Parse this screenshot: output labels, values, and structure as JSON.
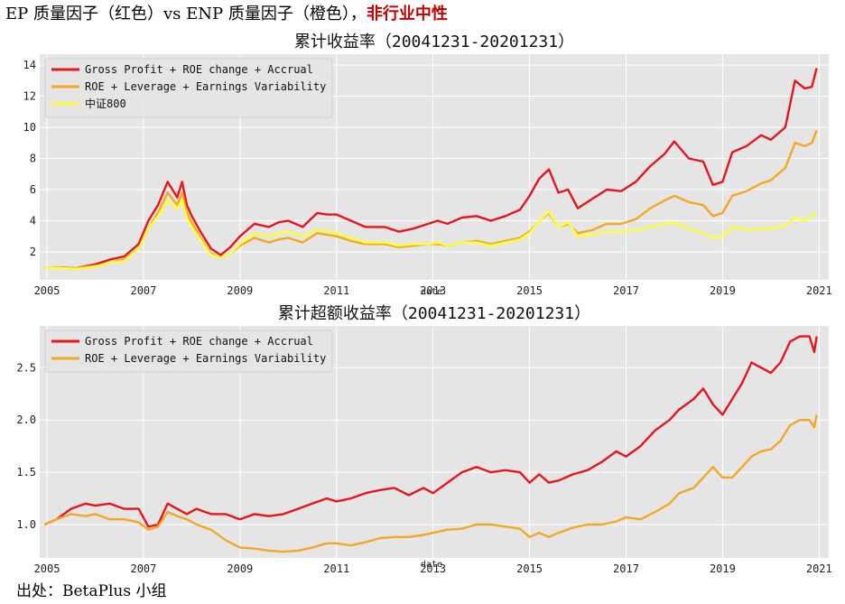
{
  "header": {
    "prefix": "EP 质量因子（红色）vs ENP 质量因子（橙色），",
    "highlight": "非行业中性"
  },
  "footer": {
    "source": "出处：BetaPlus 小组"
  },
  "colors": {
    "red": "#e8141c",
    "orange": "#f5a623",
    "yellow": "#ffff33",
    "panel": "#e5e5e5",
    "grid": "#ffffff"
  },
  "chart_data": [
    {
      "type": "line",
      "title": "累计收益率（20041231-20201231）",
      "xlabel": "date",
      "ylabel": "",
      "xlim": [
        2004.85,
        2021.2
      ],
      "ylim": [
        0.2,
        14.7
      ],
      "grid": true,
      "legend_position": "top-left",
      "x_ticks": [
        2005,
        2007,
        2009,
        2011,
        2013,
        2015,
        2017,
        2019,
        2021
      ],
      "x_tick_labels": [
        "2005",
        "2007",
        "2009",
        "2011",
        "2013",
        "2015",
        "2017",
        "2019",
        "2021"
      ],
      "y_ticks": [
        2,
        4,
        6,
        8,
        10,
        12,
        14
      ],
      "y_tick_labels": [
        "2",
        "4",
        "6",
        "8",
        "10",
        "12",
        "14"
      ],
      "series": [
        {
          "name": "Gross Profit + ROE change + Accrual",
          "color": "#e8141c",
          "x": [
            2004.95,
            2005.3,
            2005.6,
            2006.0,
            2006.3,
            2006.6,
            2006.9,
            2007.1,
            2007.3,
            2007.5,
            2007.7,
            2007.8,
            2007.9,
            2008.0,
            2008.2,
            2008.4,
            2008.6,
            2008.8,
            2009.0,
            2009.3,
            2009.6,
            2009.8,
            2010.0,
            2010.3,
            2010.6,
            2010.8,
            2011.0,
            2011.3,
            2011.6,
            2012.0,
            2012.3,
            2012.6,
            2012.9,
            2013.1,
            2013.3,
            2013.6,
            2013.9,
            2014.2,
            2014.5,
            2014.8,
            2015.0,
            2015.2,
            2015.4,
            2015.6,
            2015.8,
            2016.0,
            2016.3,
            2016.6,
            2016.9,
            2017.2,
            2017.5,
            2017.8,
            2018.0,
            2018.3,
            2018.6,
            2018.8,
            2019.0,
            2019.2,
            2019.5,
            2019.8,
            2020.0,
            2020.3,
            2020.5,
            2020.7,
            2020.85,
            2020.95
          ],
          "y": [
            1.0,
            1.0,
            0.95,
            1.2,
            1.5,
            1.7,
            2.5,
            4.0,
            5.0,
            6.5,
            5.5,
            6.5,
            5.0,
            4.3,
            3.2,
            2.2,
            1.8,
            2.3,
            3.0,
            3.8,
            3.6,
            3.9,
            4.0,
            3.6,
            4.5,
            4.4,
            4.4,
            4.0,
            3.6,
            3.6,
            3.3,
            3.5,
            3.8,
            4.0,
            3.8,
            4.2,
            4.3,
            4.0,
            4.3,
            4.7,
            5.6,
            6.7,
            7.3,
            5.8,
            6.0,
            4.8,
            5.4,
            6.0,
            5.9,
            6.5,
            7.5,
            8.3,
            9.1,
            8.0,
            7.8,
            6.3,
            6.5,
            8.4,
            8.8,
            9.5,
            9.2,
            10.0,
            13.0,
            12.5,
            12.6,
            13.8
          ]
        },
        {
          "name": "ROE + Leverage + Earnings Variability",
          "color": "#f5a623",
          "x": [
            2004.95,
            2005.3,
            2005.6,
            2006.0,
            2006.3,
            2006.6,
            2006.9,
            2007.1,
            2007.3,
            2007.5,
            2007.7,
            2007.8,
            2007.9,
            2008.0,
            2008.2,
            2008.4,
            2008.6,
            2008.8,
            2009.0,
            2009.3,
            2009.6,
            2009.8,
            2010.0,
            2010.3,
            2010.6,
            2010.8,
            2011.0,
            2011.3,
            2011.6,
            2012.0,
            2012.3,
            2012.6,
            2012.9,
            2013.1,
            2013.3,
            2013.6,
            2013.9,
            2014.2,
            2014.5,
            2014.8,
            2015.0,
            2015.2,
            2015.4,
            2015.6,
            2015.8,
            2016.0,
            2016.3,
            2016.6,
            2016.9,
            2017.2,
            2017.5,
            2017.8,
            2018.0,
            2018.3,
            2018.6,
            2018.8,
            2019.0,
            2019.2,
            2019.5,
            2019.8,
            2020.0,
            2020.3,
            2020.5,
            2020.7,
            2020.85,
            2020.95
          ],
          "y": [
            1.0,
            1.0,
            0.95,
            1.1,
            1.3,
            1.5,
            2.2,
            3.5,
            4.5,
            5.8,
            5.0,
            5.8,
            4.5,
            3.9,
            2.8,
            1.9,
            1.6,
            1.9,
            2.4,
            2.9,
            2.6,
            2.8,
            2.9,
            2.6,
            3.2,
            3.1,
            3.0,
            2.7,
            2.5,
            2.5,
            2.3,
            2.4,
            2.5,
            2.5,
            2.4,
            2.6,
            2.7,
            2.5,
            2.7,
            2.9,
            3.3,
            4.0,
            4.5,
            3.6,
            3.8,
            3.2,
            3.4,
            3.8,
            3.8,
            4.1,
            4.8,
            5.3,
            5.6,
            5.2,
            5.0,
            4.3,
            4.5,
            5.6,
            5.9,
            6.4,
            6.6,
            7.4,
            9.0,
            8.8,
            9.0,
            9.8
          ]
        },
        {
          "name": "中证800",
          "color": "#ffff33",
          "x": [
            2004.95,
            2005.3,
            2005.6,
            2006.0,
            2006.3,
            2006.6,
            2006.9,
            2007.1,
            2007.3,
            2007.5,
            2007.7,
            2007.8,
            2007.9,
            2008.0,
            2008.2,
            2008.4,
            2008.6,
            2008.8,
            2009.0,
            2009.3,
            2009.6,
            2009.8,
            2010.0,
            2010.3,
            2010.6,
            2010.8,
            2011.0,
            2011.3,
            2011.6,
            2012.0,
            2012.3,
            2012.6,
            2012.9,
            2013.1,
            2013.3,
            2013.6,
            2013.9,
            2014.2,
            2014.5,
            2014.8,
            2015.0,
            2015.2,
            2015.4,
            2015.6,
            2015.8,
            2016.0,
            2016.3,
            2016.6,
            2016.9,
            2017.2,
            2017.5,
            2017.8,
            2018.0,
            2018.3,
            2018.6,
            2018.8,
            2019.0,
            2019.2,
            2019.5,
            2019.8,
            2020.0,
            2020.3,
            2020.5,
            2020.7,
            2020.85,
            2020.95
          ],
          "y": [
            1.0,
            0.95,
            0.9,
            1.05,
            1.3,
            1.4,
            2.2,
            3.5,
            4.3,
            5.3,
            4.8,
            5.3,
            4.2,
            3.6,
            2.7,
            1.8,
            1.6,
            1.9,
            2.5,
            3.2,
            3.0,
            3.2,
            3.3,
            3.0,
            3.4,
            3.3,
            3.2,
            2.9,
            2.6,
            2.6,
            2.4,
            2.5,
            2.5,
            2.6,
            2.4,
            2.6,
            2.6,
            2.4,
            2.6,
            2.8,
            3.2,
            4.0,
            4.6,
            3.6,
            3.9,
            3.0,
            3.1,
            3.3,
            3.3,
            3.4,
            3.6,
            3.8,
            3.9,
            3.5,
            3.2,
            2.9,
            3.0,
            3.6,
            3.4,
            3.5,
            3.5,
            3.7,
            4.2,
            4.0,
            4.3,
            4.5
          ]
        }
      ]
    },
    {
      "type": "line",
      "title": "累计超额收益率（20041231-20201231）",
      "xlabel": "date",
      "ylabel": "",
      "xlim": [
        2004.85,
        2021.2
      ],
      "ylim": [
        0.68,
        2.9
      ],
      "grid": true,
      "legend_position": "top-left",
      "x_ticks": [
        2005,
        2007,
        2009,
        2011,
        2013,
        2015,
        2017,
        2019,
        2021
      ],
      "x_tick_labels": [
        "2005",
        "2007",
        "2009",
        "2011",
        "2013",
        "2015",
        "2017",
        "2019",
        "2021"
      ],
      "y_ticks": [
        1.0,
        1.5,
        2.0,
        2.5
      ],
      "y_tick_labels": [
        "1.0",
        "1.5",
        "2.0",
        "2.5"
      ],
      "series": [
        {
          "name": "Gross Profit + ROE change + Accrual",
          "color": "#e8141c",
          "x": [
            2004.95,
            2005.2,
            2005.5,
            2005.8,
            2006.0,
            2006.3,
            2006.6,
            2006.9,
            2007.1,
            2007.3,
            2007.5,
            2007.7,
            2007.9,
            2008.1,
            2008.4,
            2008.7,
            2009.0,
            2009.3,
            2009.6,
            2009.9,
            2010.2,
            2010.5,
            2010.8,
            2011.0,
            2011.3,
            2011.6,
            2011.9,
            2012.2,
            2012.5,
            2012.8,
            2013.0,
            2013.3,
            2013.6,
            2013.9,
            2014.2,
            2014.5,
            2014.8,
            2015.0,
            2015.2,
            2015.4,
            2015.6,
            2015.9,
            2016.2,
            2016.5,
            2016.8,
            2017.0,
            2017.3,
            2017.6,
            2017.9,
            2018.1,
            2018.4,
            2018.6,
            2018.8,
            2019.0,
            2019.2,
            2019.4,
            2019.6,
            2019.8,
            2020.0,
            2020.2,
            2020.4,
            2020.6,
            2020.8,
            2020.9,
            2020.95
          ],
          "y": [
            1.0,
            1.05,
            1.15,
            1.2,
            1.18,
            1.2,
            1.15,
            1.15,
            0.98,
            1.0,
            1.2,
            1.15,
            1.1,
            1.15,
            1.1,
            1.1,
            1.05,
            1.1,
            1.08,
            1.1,
            1.15,
            1.2,
            1.25,
            1.22,
            1.25,
            1.3,
            1.33,
            1.35,
            1.28,
            1.35,
            1.3,
            1.4,
            1.5,
            1.55,
            1.5,
            1.52,
            1.5,
            1.4,
            1.48,
            1.4,
            1.42,
            1.48,
            1.52,
            1.6,
            1.7,
            1.65,
            1.75,
            1.9,
            2.0,
            2.1,
            2.2,
            2.3,
            2.15,
            2.05,
            2.2,
            2.35,
            2.55,
            2.5,
            2.45,
            2.55,
            2.75,
            2.8,
            2.8,
            2.65,
            2.8
          ]
        },
        {
          "name": "ROE + Leverage + Earnings Variability",
          "color": "#f5a623",
          "x": [
            2004.95,
            2005.2,
            2005.5,
            2005.8,
            2006.0,
            2006.3,
            2006.6,
            2006.9,
            2007.1,
            2007.3,
            2007.5,
            2007.7,
            2007.9,
            2008.1,
            2008.4,
            2008.7,
            2009.0,
            2009.3,
            2009.6,
            2009.9,
            2010.2,
            2010.5,
            2010.8,
            2011.0,
            2011.3,
            2011.6,
            2011.9,
            2012.2,
            2012.5,
            2012.8,
            2013.0,
            2013.3,
            2013.6,
            2013.9,
            2014.2,
            2014.5,
            2014.8,
            2015.0,
            2015.2,
            2015.4,
            2015.6,
            2015.9,
            2016.2,
            2016.5,
            2016.8,
            2017.0,
            2017.3,
            2017.6,
            2017.9,
            2018.1,
            2018.4,
            2018.6,
            2018.8,
            2019.0,
            2019.2,
            2019.4,
            2019.6,
            2019.8,
            2020.0,
            2020.2,
            2020.4,
            2020.6,
            2020.8,
            2020.9,
            2020.95
          ],
          "y": [
            1.0,
            1.05,
            1.1,
            1.08,
            1.1,
            1.05,
            1.05,
            1.02,
            0.95,
            0.98,
            1.12,
            1.08,
            1.05,
            1.0,
            0.95,
            0.85,
            0.78,
            0.77,
            0.75,
            0.74,
            0.75,
            0.78,
            0.82,
            0.82,
            0.8,
            0.83,
            0.87,
            0.88,
            0.88,
            0.9,
            0.92,
            0.95,
            0.96,
            1.0,
            1.0,
            0.98,
            0.96,
            0.88,
            0.92,
            0.88,
            0.92,
            0.97,
            1.0,
            1.0,
            1.03,
            1.07,
            1.05,
            1.12,
            1.2,
            1.3,
            1.35,
            1.45,
            1.55,
            1.45,
            1.45,
            1.55,
            1.65,
            1.7,
            1.72,
            1.8,
            1.95,
            2.0,
            2.0,
            1.93,
            2.05
          ]
        }
      ]
    }
  ]
}
